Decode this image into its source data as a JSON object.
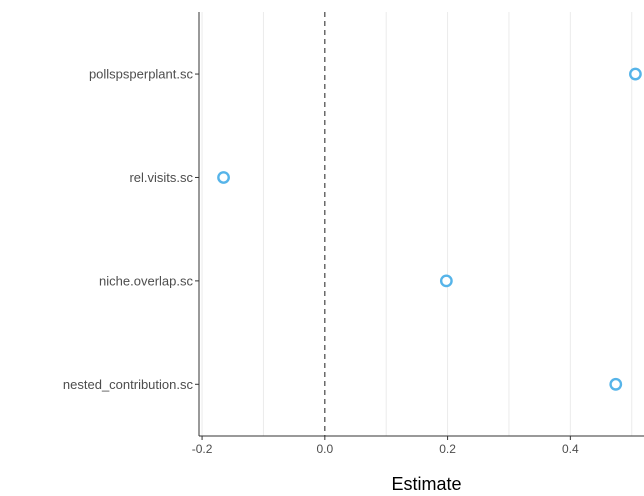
{
  "chart_data": {
    "type": "scatter",
    "title": "",
    "xlabel": "Estimate",
    "ylabel": "",
    "xlim": [
      -0.205,
      0.52
    ],
    "x_ticks": [
      -0.2,
      0.0,
      0.2,
      0.4
    ],
    "x_tick_labels": [
      "-0.2",
      "0.0",
      "0.2",
      "0.4"
    ],
    "reference_line_x": 0,
    "grid": "vertical minor/major light gridlines",
    "categories": [
      "pollspsperplant.sc",
      "rel.visits.sc",
      "niche.overlap.sc",
      "nested_contribution.sc"
    ],
    "points": [
      {
        "label": "pollspsperplant.sc",
        "x": 0.506
      },
      {
        "label": "rel.visits.sc",
        "x": -0.165
      },
      {
        "label": "niche.overlap.sc",
        "x": 0.198
      },
      {
        "label": "nested_contribution.sc",
        "x": 0.474
      }
    ],
    "point_color": "#56B4E9",
    "grid_color": "#ebebeb",
    "axis_color": "#333333"
  }
}
